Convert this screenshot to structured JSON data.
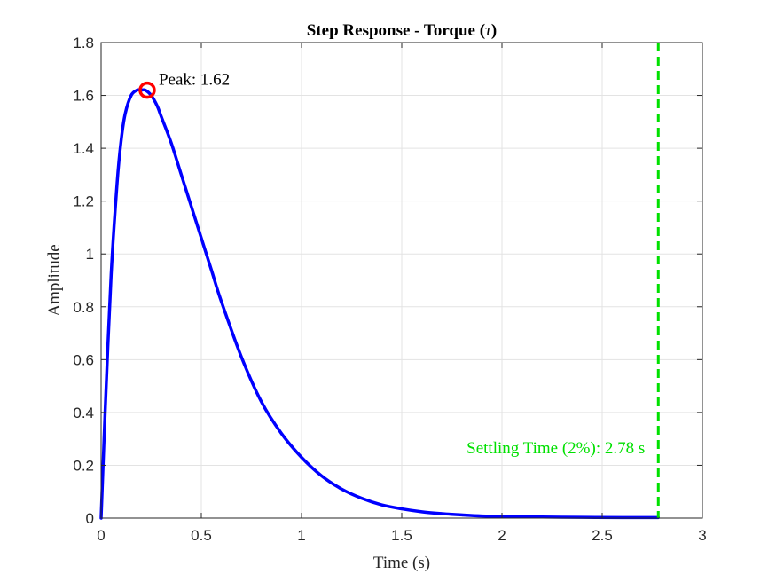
{
  "chart_data": {
    "type": "line",
    "title": "Step Response - Torque (",
    "title_symbol": "τ",
    "title_suffix": ")",
    "xlabel": "Time (s)",
    "ylabel": "Amplitude",
    "xlim": [
      0,
      3
    ],
    "ylim": [
      0,
      1.8
    ],
    "x_ticks": [
      0,
      0.5,
      1,
      1.5,
      2,
      2.5,
      3
    ],
    "x_tick_labels": [
      "0",
      "0.5",
      "1",
      "1.5",
      "2",
      "2.5",
      "3"
    ],
    "y_ticks": [
      0,
      0.2,
      0.4,
      0.6,
      0.8,
      1,
      1.2,
      1.4,
      1.6,
      1.8
    ],
    "y_tick_labels": [
      "0",
      "0.2",
      "0.4",
      "0.6",
      "0.8",
      "1",
      "1.2",
      "1.4",
      "1.6",
      "1.8"
    ],
    "grid": true,
    "series": [
      {
        "color": "#0000ff",
        "x": [
          0,
          0.02,
          0.05,
          0.08,
          0.1,
          0.12,
          0.15,
          0.18,
          0.2,
          0.22,
          0.25,
          0.28,
          0.3,
          0.35,
          0.4,
          0.45,
          0.5,
          0.55,
          0.6,
          0.7,
          0.8,
          0.9,
          1.0,
          1.1,
          1.2,
          1.3,
          1.4,
          1.5,
          1.6,
          1.7,
          1.8,
          1.9,
          2.0,
          2.2,
          2.4,
          2.6,
          2.78
        ],
        "y": [
          0,
          0.4,
          0.92,
          1.27,
          1.43,
          1.53,
          1.6,
          1.62,
          1.62,
          1.62,
          1.6,
          1.56,
          1.52,
          1.42,
          1.3,
          1.18,
          1.06,
          0.94,
          0.82,
          0.61,
          0.44,
          0.32,
          0.23,
          0.16,
          0.11,
          0.075,
          0.05,
          0.035,
          0.024,
          0.017,
          0.012,
          0.008,
          0.006,
          0.004,
          0.003,
          0.002,
          0.002
        ]
      }
    ],
    "peak": {
      "x": 0.23,
      "y": 1.62,
      "label": "Peak: 1.62",
      "color": "#ff0000"
    },
    "settling": {
      "x": 2.78,
      "label": "Settling Time (2%): 2.78 s",
      "color": "#00e000"
    }
  }
}
